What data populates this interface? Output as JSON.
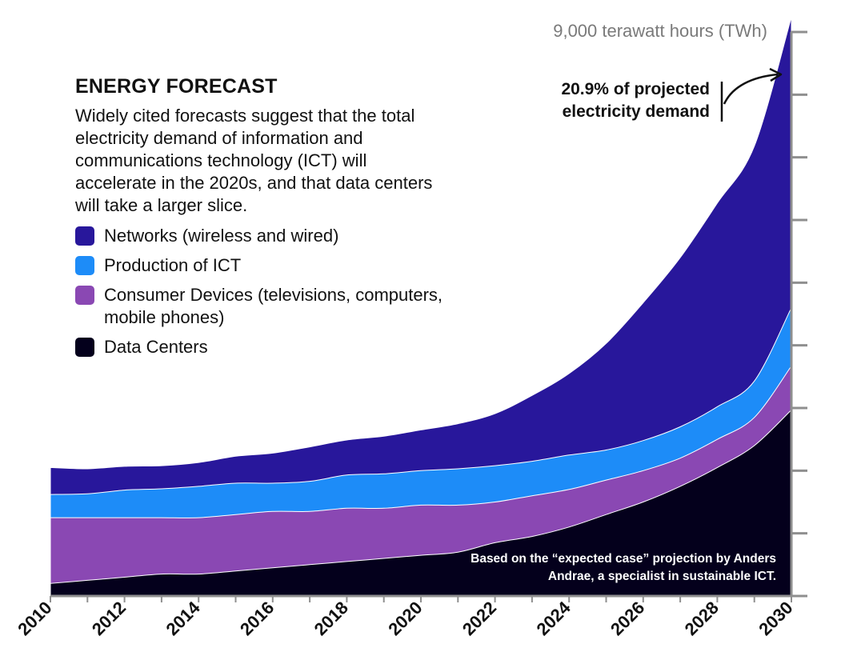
{
  "heading": "ENERGY FORECAST",
  "description": "Widely cited forecasts suggest that the total electricity demand of information and communications technology (ICT) will accelerate in the 2020s, and that data centers will take a larger slice.",
  "legend": [
    {
      "label": "Networks (wireless and wired)",
      "color": "#28179b"
    },
    {
      "label": "Production of ICT",
      "color": "#1d8cf8"
    },
    {
      "label": "Consumer Devices (televisions, computers, mobile phones)",
      "color": "#8a48b3"
    },
    {
      "label": "Data Centers",
      "color": "#04001c"
    }
  ],
  "axis_top_label": "9,000 terawatt hours (TWh)",
  "callout": "20.9% of projected electricity demand",
  "source": "Based on the “expected case” projection by Anders Andrae, a specialist in sustainable ICT.",
  "chart_data": {
    "type": "area",
    "stacked": true,
    "x": [
      2010,
      2011,
      2012,
      2013,
      2014,
      2015,
      2016,
      2017,
      2018,
      2019,
      2020,
      2021,
      2022,
      2023,
      2024,
      2025,
      2026,
      2027,
      2028,
      2029,
      2030
    ],
    "x_tick_labels": [
      "2010",
      "2012",
      "2014",
      "2016",
      "2018",
      "2020",
      "2022",
      "2024",
      "2026",
      "2028",
      "2030"
    ],
    "y_unit": "terawatt hours (TWh)",
    "ylim": [
      0,
      9000
    ],
    "y_tick_step": 1000,
    "y_tick_labels": [
      "9,000 terawatt hours (TWh)"
    ],
    "grid": false,
    "legend_position": "top-left",
    "series": [
      {
        "name": "Data Centers",
        "color": "#04001c",
        "values": [
          200,
          250,
          300,
          350,
          350,
          400,
          450,
          500,
          550,
          600,
          650,
          700,
          850,
          950,
          1100,
          1300,
          1500,
          1750,
          2050,
          2400,
          2970
        ]
      },
      {
        "name": "Consumer Devices (televisions, computers, mobile phones)",
        "color": "#8a48b3",
        "values": [
          1050,
          1000,
          950,
          900,
          900,
          900,
          900,
          850,
          850,
          800,
          800,
          750,
          650,
          650,
          600,
          550,
          500,
          450,
          450,
          450,
          700
        ]
      },
      {
        "name": "Production of ICT",
        "color": "#1d8cf8",
        "values": [
          370,
          380,
          440,
          460,
          500,
          500,
          450,
          480,
          530,
          550,
          550,
          580,
          580,
          550,
          550,
          480,
          480,
          500,
          520,
          580,
          930
        ]
      },
      {
        "name": "Networks (wireless and wired)",
        "color": "#28179b",
        "values": [
          430,
          400,
          380,
          370,
          380,
          430,
          480,
          550,
          560,
          600,
          650,
          720,
          830,
          1050,
          1300,
          1700,
          2200,
          2700,
          3250,
          3750,
          4640
        ]
      }
    ]
  }
}
